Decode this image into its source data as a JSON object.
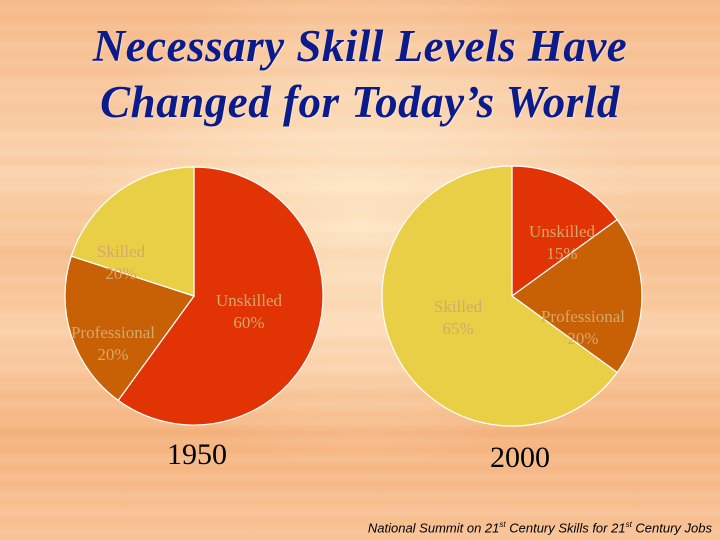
{
  "title": {
    "line1": "Necessary Skill Levels Have",
    "line2": "Changed for Today’s World"
  },
  "colors": {
    "unskilled": "#e23305",
    "skilled": "#e8cf45",
    "professional": "#c86005",
    "label_text": "#d6a86a",
    "title": "#0c1b8c"
  },
  "chart_data": [
    {
      "type": "pie",
      "title": "1950",
      "slices": [
        {
          "label": "Unskilled",
          "value": 60,
          "value_label": "60%",
          "color": "#e23305"
        },
        {
          "label": "Professional",
          "value": 20,
          "value_label": "20%",
          "color": "#c86005"
        },
        {
          "label": "Skilled",
          "value": 20,
          "value_label": "20%",
          "color": "#e8cf45"
        }
      ]
    },
    {
      "type": "pie",
      "title": "2000",
      "slices": [
        {
          "label": "Unskilled",
          "value": 15,
          "value_label": "15%",
          "color": "#e23305"
        },
        {
          "label": "Professional",
          "value": 20,
          "value_label": "20%",
          "color": "#c86005"
        },
        {
          "label": "Skilled",
          "value": 65,
          "value_label": "65%",
          "color": "#e8cf45"
        }
      ]
    }
  ],
  "source": {
    "part1": "National Summit on 21",
    "sup1": "st",
    "part2": " Century Skills for 21",
    "sup2": "st",
    "part3": " Century Jobs"
  }
}
